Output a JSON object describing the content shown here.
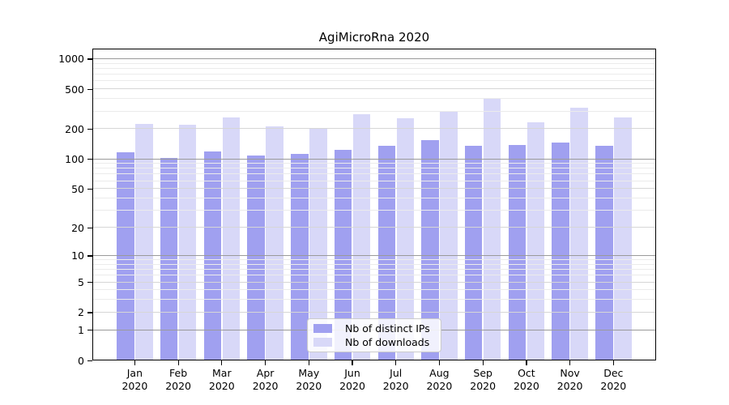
{
  "chart_data": {
    "type": "bar",
    "title": "AgiMicroRna 2020",
    "categories": [
      {
        "month": "Jan",
        "year": "2020"
      },
      {
        "month": "Feb",
        "year": "2020"
      },
      {
        "month": "Mar",
        "year": "2020"
      },
      {
        "month": "Apr",
        "year": "2020"
      },
      {
        "month": "May",
        "year": "2020"
      },
      {
        "month": "Jun",
        "year": "2020"
      },
      {
        "month": "Jul",
        "year": "2020"
      },
      {
        "month": "Aug",
        "year": "2020"
      },
      {
        "month": "Sep",
        "year": "2020"
      },
      {
        "month": "Oct",
        "year": "2020"
      },
      {
        "month": "Nov",
        "year": "2020"
      },
      {
        "month": "Dec",
        "year": "2020"
      }
    ],
    "series": [
      {
        "name": "Nb of distinct IPs",
        "color": "#a0a0f0",
        "values": [
          118,
          103,
          119,
          109,
          112,
          125,
          137,
          154,
          135,
          140,
          148,
          135
        ]
      },
      {
        "name": "Nb of downloads",
        "color": "#d8d8f8",
        "values": [
          225,
          221,
          263,
          214,
          204,
          282,
          258,
          305,
          410,
          232,
          330,
          263
        ]
      }
    ],
    "y_axis": {
      "scale": "log1p",
      "tick_labels": [
        0,
        1,
        2,
        5,
        10,
        20,
        50,
        100,
        200,
        500,
        1000
      ],
      "decade_gridlines": [
        1,
        10,
        100,
        1000
      ],
      "mid_gridlines": [
        2,
        5,
        20,
        50,
        200,
        500
      ],
      "minor_gridlines": [
        3,
        4,
        6,
        7,
        8,
        9,
        30,
        40,
        60,
        70,
        80,
        90,
        300,
        400,
        600,
        700,
        800,
        900
      ],
      "ylim": [
        0,
        1270
      ]
    },
    "legend_position": "lower center",
    "grid": "on"
  }
}
